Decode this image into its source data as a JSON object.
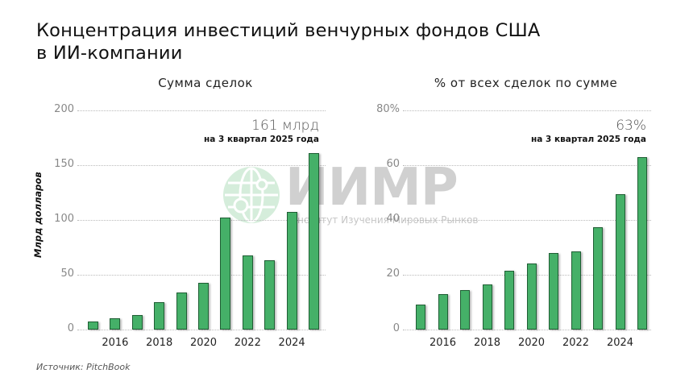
{
  "header": {
    "title_line1": "Концентрация инвестиций венчурных фондов США",
    "title_line2": "в ИИ-компании"
  },
  "watermark": {
    "logo_text": "ИИМР",
    "subtitle": "Институт Изучения Мировых Рынков"
  },
  "footer": {
    "source": "Источник: PitchBook"
  },
  "colors": {
    "bar_fill": "#45b068",
    "bar_border": "#1f5e34",
    "gridline": "#bbbbbb"
  },
  "chart_data": [
    {
      "type": "bar",
      "title": "Сумма сделок",
      "xlabel": "",
      "ylabel": "Млрд долларов",
      "categories": [
        "2015",
        "2016",
        "2017",
        "2018",
        "2019",
        "2020",
        "2021",
        "2022",
        "2023",
        "2024",
        "2025"
      ],
      "x_tick_labels": [
        "2016",
        "2018",
        "2020",
        "2022",
        "2024"
      ],
      "y_tick_labels": [
        "0",
        "50",
        "100",
        "150",
        "200"
      ],
      "values": [
        7,
        10,
        13,
        25,
        34,
        43,
        102,
        68,
        63,
        107,
        161
      ],
      "ylim": [
        0,
        200
      ],
      "grid": true,
      "annotation": {
        "value": "161 млрд",
        "note": "на 3 квартал 2025 года"
      }
    },
    {
      "type": "bar",
      "title": "% от всех сделок по сумме",
      "xlabel": "",
      "ylabel": "",
      "categories": [
        "2015",
        "2016",
        "2017",
        "2018",
        "2019",
        "2020",
        "2021",
        "2022",
        "2023",
        "2024",
        "2025"
      ],
      "x_tick_labels": [
        "2016",
        "2018",
        "2020",
        "2022",
        "2024"
      ],
      "y_tick_labels": [
        "0",
        "20",
        "40",
        "60",
        "80%"
      ],
      "values": [
        9,
        13,
        14.5,
        16.5,
        21.5,
        24,
        28,
        28.5,
        37.5,
        49.5,
        63
      ],
      "ylim": [
        0,
        80
      ],
      "grid": true,
      "annotation": {
        "value": "63%",
        "note": "на 3 квартал 2025 года"
      }
    }
  ]
}
